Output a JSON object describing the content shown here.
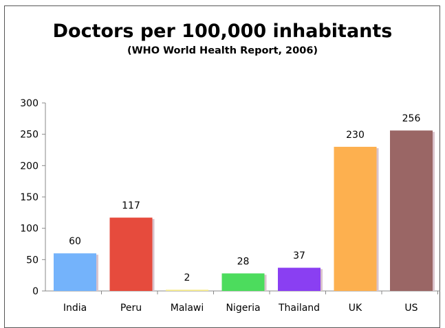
{
  "chart_data": {
    "type": "bar",
    "title": "Doctors per 100,000 inhabitants",
    "subtitle": "(WHO World Health Report, 2006)",
    "xlabel": "",
    "ylabel": "",
    "ylim": [
      0,
      300
    ],
    "yticks": [
      0,
      50,
      100,
      150,
      200,
      250,
      300
    ],
    "grid": false,
    "categories": [
      "India",
      "Peru",
      "Malawi",
      "Nigeria",
      "Thailand",
      "UK",
      "US"
    ],
    "values": [
      60,
      117,
      2,
      28,
      37,
      230,
      256
    ],
    "colors": [
      "#74b3fb",
      "#e64b3d",
      "#f6ec8e",
      "#4cdc5d",
      "#8a3ff2",
      "#fdb04f",
      "#9a6665"
    ],
    "data_labels": [
      "60",
      "117",
      "2",
      "28",
      "37",
      "230",
      "256"
    ]
  }
}
